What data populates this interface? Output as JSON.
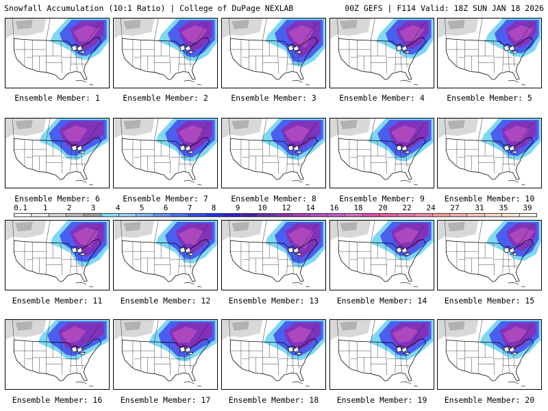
{
  "header": {
    "left": "Snowfall Accumulation (10:1 Ratio) | College of DuPage NEXLAB",
    "right": "00Z GEFS | F114 Valid: 18Z SUN JAN 18 2026"
  },
  "colorbar": {
    "ticks": [
      "0.1",
      "1",
      "2",
      "3",
      "4",
      "5",
      "6",
      "7",
      "8",
      "9",
      "10",
      "12",
      "14",
      "16",
      "18",
      "20",
      "22",
      "24",
      "27",
      "31",
      "35",
      "39"
    ],
    "colors": [
      "#ffffff",
      "#e6e6e6",
      "#cfcfcf",
      "#b4b4b4",
      "#989898",
      "#7dd8f0",
      "#9ec8f4",
      "#80aef0",
      "#5f8ff0",
      "#4a6cf0",
      "#2b4bef",
      "#1f2fe8",
      "#2a22c8",
      "#4a1ea8",
      "#6a2aa8",
      "#8630b0",
      "#a13ab8",
      "#b449c0",
      "#c456c4",
      "#d266bc",
      "#de4aa8",
      "#e05a9a",
      "#e470a0",
      "#e888a8",
      "#ec9a9a",
      "#f0aaaa",
      "#f4c0b4",
      "#f8d2c2",
      "#fae2d2",
      "#fdf0e6"
    ]
  },
  "panels": [
    {
      "label": "Ensemble Member: 1"
    },
    {
      "label": "Ensemble Member: 2"
    },
    {
      "label": "Ensemble Member: 3"
    },
    {
      "label": "Ensemble Member: 4"
    },
    {
      "label": "Ensemble Member: 5"
    },
    {
      "label": "Ensemble Member: 6"
    },
    {
      "label": "Ensemble Member: 7"
    },
    {
      "label": "Ensemble Member: 8"
    },
    {
      "label": "Ensemble Member: 9"
    },
    {
      "label": "Ensemble Member: 10"
    },
    {
      "label": "Ensemble Member: 11"
    },
    {
      "label": "Ensemble Member: 12"
    },
    {
      "label": "Ensemble Member: 13"
    },
    {
      "label": "Ensemble Member: 14"
    },
    {
      "label": "Ensemble Member: 15"
    },
    {
      "label": "Ensemble Member: 16"
    },
    {
      "label": "Ensemble Member: 17"
    },
    {
      "label": "Ensemble Member: 18"
    },
    {
      "label": "Ensemble Member: 19"
    },
    {
      "label": "Ensemble Member: 20"
    }
  ]
}
